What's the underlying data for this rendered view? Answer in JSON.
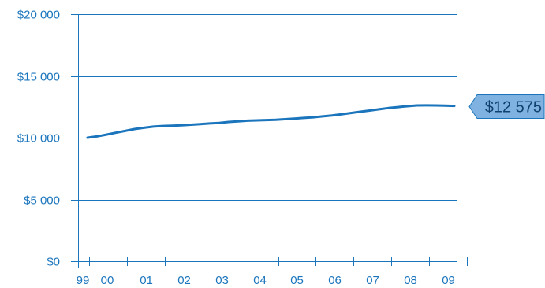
{
  "chart_data": {
    "type": "line",
    "title": "",
    "xlabel": "",
    "ylabel": "",
    "ylim": [
      0,
      20000
    ],
    "y_ticks": [
      {
        "value": 0,
        "label": "$0"
      },
      {
        "value": 5000,
        "label": "$5 000"
      },
      {
        "value": 10000,
        "label": "$10 000"
      },
      {
        "value": 15000,
        "label": "$15 000"
      },
      {
        "value": 20000,
        "label": "$20 000"
      }
    ],
    "x_ticks": [
      "99",
      "00",
      "01",
      "02",
      "03",
      "04",
      "05",
      "06",
      "07",
      "08",
      "09"
    ],
    "grid": "horizontal",
    "series": [
      {
        "color": "#1b75bc",
        "points": [
          {
            "x": "1999-12",
            "y": 10000
          },
          {
            "x": "2000-03",
            "y": 10100
          },
          {
            "x": "2000-06",
            "y": 10250
          },
          {
            "x": "2000-09",
            "y": 10400
          },
          {
            "x": "2000-12",
            "y": 10550
          },
          {
            "x": "2001-03",
            "y": 10700
          },
          {
            "x": "2001-06",
            "y": 10800
          },
          {
            "x": "2001-09",
            "y": 10900
          },
          {
            "x": "2001-12",
            "y": 10950
          },
          {
            "x": "2002-03",
            "y": 10975
          },
          {
            "x": "2002-06",
            "y": 11000
          },
          {
            "x": "2002-09",
            "y": 11050
          },
          {
            "x": "2002-12",
            "y": 11100
          },
          {
            "x": "2003-03",
            "y": 11150
          },
          {
            "x": "2003-06",
            "y": 11200
          },
          {
            "x": "2003-09",
            "y": 11275
          },
          {
            "x": "2003-12",
            "y": 11325
          },
          {
            "x": "2004-03",
            "y": 11375
          },
          {
            "x": "2004-06",
            "y": 11400
          },
          {
            "x": "2004-09",
            "y": 11425
          },
          {
            "x": "2004-12",
            "y": 11450
          },
          {
            "x": "2005-03",
            "y": 11500
          },
          {
            "x": "2005-06",
            "y": 11550
          },
          {
            "x": "2005-09",
            "y": 11600
          },
          {
            "x": "2005-12",
            "y": 11650
          },
          {
            "x": "2006-03",
            "y": 11725
          },
          {
            "x": "2006-06",
            "y": 11800
          },
          {
            "x": "2006-09",
            "y": 11900
          },
          {
            "x": "2006-12",
            "y": 12000
          },
          {
            "x": "2007-03",
            "y": 12100
          },
          {
            "x": "2007-06",
            "y": 12200
          },
          {
            "x": "2007-09",
            "y": 12300
          },
          {
            "x": "2007-12",
            "y": 12400
          },
          {
            "x": "2008-03",
            "y": 12475
          },
          {
            "x": "2008-06",
            "y": 12550
          },
          {
            "x": "2008-09",
            "y": 12610
          },
          {
            "x": "2008-12",
            "y": 12620
          },
          {
            "x": "2009-03",
            "y": 12610
          },
          {
            "x": "2009-06",
            "y": 12590
          },
          {
            "x": "2009-09",
            "y": 12575
          }
        ]
      }
    ],
    "end_value": {
      "value": 12575,
      "label": "$12 575"
    }
  },
  "colors": {
    "axis": "#1b75bc",
    "text": "#1b75bc",
    "line": "#1b75bc",
    "callout_fill": "#7fb2e0",
    "callout_stroke": "#1b75bc",
    "callout_text": "#11416e"
  }
}
